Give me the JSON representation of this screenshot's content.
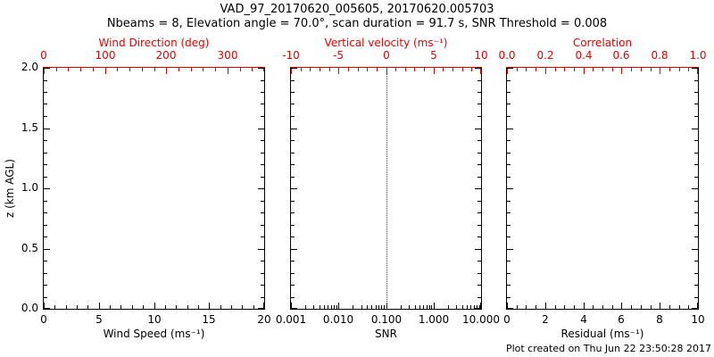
{
  "header": {
    "title": "VAD_97_20170620_005605, 20170620.005703",
    "subtitle": "Nbeams = 8, Elevation angle = 70.0°, scan duration = 91.7 s, SNR Threshold = 0.008"
  },
  "footer": {
    "created": "Plot created on Thu Jun 22 23:50:28 2017"
  },
  "colors": {
    "primary_axis": "#000000",
    "secondary_axis": "#e60000",
    "refline": "#e60000",
    "background": "#ffffff"
  },
  "chart_data": [
    {
      "type": "scatter",
      "panel": "wind-speed-vs-height",
      "series": [],
      "x_bottom": {
        "label": "Wind Speed (ms⁻¹)",
        "scale": "linear",
        "range": [
          0,
          20
        ],
        "ticks": [
          0,
          5,
          10,
          15,
          20
        ],
        "tick_labels": [
          "0",
          "5",
          "10",
          "15",
          "20"
        ],
        "minor_step": 1
      },
      "x_top": {
        "label": "Wind Direction (deg)",
        "scale": "linear",
        "range": [
          0,
          360
        ],
        "ticks": [
          0,
          100,
          200,
          300
        ],
        "tick_labels": [
          "0",
          "100",
          "200",
          "300"
        ],
        "minor_step": 20
      },
      "y_left": {
        "label": "z (km AGL)",
        "scale": "linear",
        "range": [
          0,
          2
        ],
        "ticks": [
          0,
          0.5,
          1,
          1.5,
          2
        ],
        "tick_labels": [
          "0.0",
          "0.5",
          "1.0",
          "1.5",
          "2.0"
        ],
        "minor_step": 0.1,
        "show_labels": true
      }
    },
    {
      "type": "scatter",
      "panel": "snr-vs-height",
      "series": [],
      "x_bottom": {
        "label": "SNR",
        "scale": "log",
        "range": [
          0.001,
          10
        ],
        "ticks": [
          0.001,
          0.01,
          0.1,
          1,
          10
        ],
        "tick_labels": [
          "0.001",
          "0.010",
          "0.100",
          "1.000",
          "10.000"
        ]
      },
      "x_top": {
        "label": "Vertical velocity (ms⁻¹)",
        "scale": "linear",
        "range": [
          -10,
          10
        ],
        "ticks": [
          -10,
          -5,
          0,
          5,
          10
        ],
        "tick_labels": [
          "-10",
          "-5",
          "0",
          "5",
          "10"
        ],
        "minor_step": 1
      },
      "y_left": {
        "label": "",
        "scale": "linear",
        "range": [
          0,
          2
        ],
        "ticks": [
          0,
          0.5,
          1,
          1.5,
          2
        ],
        "tick_labels": [
          "",
          "",
          "",
          "",
          ""
        ],
        "minor_step": 0.1,
        "show_labels": false
      },
      "refline": {
        "orientation": "vertical",
        "axis": "x_top",
        "value": 0,
        "style": "dotted"
      }
    },
    {
      "type": "scatter",
      "panel": "residual-vs-height",
      "series": [],
      "x_bottom": {
        "label": "Residual (ms⁻¹)",
        "scale": "linear",
        "range": [
          0,
          10
        ],
        "ticks": [
          0,
          2,
          4,
          6,
          8,
          10
        ],
        "tick_labels": [
          "0",
          "2",
          "4",
          "6",
          "8",
          "10"
        ],
        "minor_step": 0.5
      },
      "x_top": {
        "label": "Correlation",
        "scale": "linear",
        "range": [
          0,
          1
        ],
        "ticks": [
          0,
          0.2,
          0.4,
          0.6,
          0.8,
          1
        ],
        "tick_labels": [
          "0.0",
          "0.2",
          "0.4",
          "0.6",
          "0.8",
          "1.0"
        ],
        "minor_step": 0.05
      },
      "y_left": {
        "label": "",
        "scale": "linear",
        "range": [
          0,
          2
        ],
        "ticks": [
          0,
          0.5,
          1,
          1.5,
          2
        ],
        "tick_labels": [
          "",
          "",
          "",
          "",
          ""
        ],
        "minor_step": 0.1,
        "show_labels": false
      }
    }
  ]
}
